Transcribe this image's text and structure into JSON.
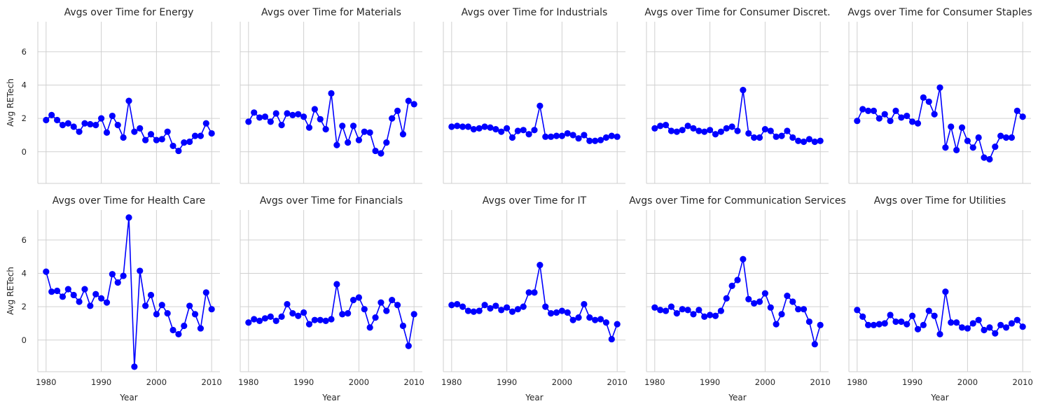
{
  "chart_data": {
    "type": "line",
    "layout": "facet-grid",
    "ylabel": "Avg RETech",
    "xlabel": "Year",
    "xlim": [
      1978.5,
      2011.5
    ],
    "ylim": [
      -1.9,
      7.8
    ],
    "xticks": [
      1980,
      1990,
      2000,
      2010
    ],
    "yticks": [
      0,
      2,
      4,
      6
    ],
    "grid": true,
    "color": "#0000ff",
    "x": [
      1980,
      1981,
      1982,
      1983,
      1984,
      1985,
      1986,
      1987,
      1988,
      1989,
      1990,
      1991,
      1992,
      1993,
      1994,
      1995,
      1996,
      1997,
      1998,
      1999,
      2000,
      2001,
      2002,
      2003,
      2004,
      2005,
      2006,
      2007,
      2008,
      2009,
      2010
    ],
    "panels": [
      {
        "title": "Avgs over Time for Energy",
        "values": [
          1.9,
          2.2,
          1.9,
          1.6,
          1.7,
          1.5,
          1.2,
          1.7,
          1.65,
          1.6,
          2.0,
          1.15,
          2.15,
          1.6,
          0.85,
          3.05,
          1.2,
          1.4,
          0.7,
          1.05,
          0.7,
          0.75,
          1.2,
          0.35,
          0.05,
          0.55,
          0.6,
          0.95,
          0.95,
          1.7,
          1.1
        ]
      },
      {
        "title": "Avgs over Time for Materials",
        "values": [
          1.8,
          2.35,
          2.05,
          2.1,
          1.8,
          2.3,
          1.6,
          2.3,
          2.2,
          2.25,
          2.1,
          1.45,
          2.55,
          1.95,
          1.35,
          3.5,
          0.4,
          1.55,
          0.55,
          1.55,
          0.7,
          1.2,
          1.15,
          0.05,
          -0.1,
          0.55,
          2.0,
          2.45,
          1.05,
          3.05,
          2.85
        ]
      },
      {
        "title": "Avgs over Time for Industrials",
        "values": [
          1.5,
          1.55,
          1.5,
          1.5,
          1.35,
          1.4,
          1.5,
          1.45,
          1.35,
          1.2,
          1.4,
          0.85,
          1.25,
          1.3,
          1.05,
          1.3,
          2.75,
          0.9,
          0.9,
          0.95,
          0.95,
          1.1,
          1.0,
          0.8,
          1.0,
          0.65,
          0.65,
          0.7,
          0.85,
          0.95,
          0.9
        ]
      },
      {
        "title": "Avgs over Time for Consumer Discret.",
        "values": [
          1.4,
          1.55,
          1.6,
          1.25,
          1.2,
          1.3,
          1.55,
          1.4,
          1.25,
          1.2,
          1.3,
          1.05,
          1.2,
          1.4,
          1.5,
          1.25,
          3.7,
          1.1,
          0.85,
          0.85,
          1.35,
          1.25,
          0.9,
          0.95,
          1.25,
          0.85,
          0.65,
          0.6,
          0.75,
          0.6,
          0.65
        ]
      },
      {
        "title": "Avgs over Time for Consumer Staples",
        "values": [
          1.85,
          2.55,
          2.45,
          2.45,
          2.0,
          2.25,
          1.85,
          2.45,
          2.05,
          2.15,
          1.8,
          1.7,
          3.25,
          3.0,
          2.25,
          3.85,
          0.25,
          1.5,
          0.1,
          1.45,
          0.65,
          0.25,
          0.85,
          -0.35,
          -0.45,
          0.3,
          0.95,
          0.85,
          0.85,
          2.45,
          2.1
        ]
      },
      {
        "title": "Avgs over Time for Health Care",
        "values": [
          4.1,
          2.9,
          2.95,
          2.6,
          3.05,
          2.7,
          2.3,
          3.05,
          2.05,
          2.75,
          2.5,
          2.25,
          3.95,
          3.45,
          3.85,
          7.35,
          -1.6,
          4.15,
          2.05,
          2.7,
          1.55,
          2.1,
          1.6,
          0.6,
          0.35,
          0.85,
          2.05,
          1.55,
          0.7,
          2.85,
          1.85
        ]
      },
      {
        "title": "Avgs over Time for Financials",
        "values": [
          1.05,
          1.25,
          1.15,
          1.3,
          1.4,
          1.15,
          1.4,
          2.15,
          1.6,
          1.45,
          1.65,
          0.95,
          1.2,
          1.2,
          1.15,
          1.25,
          3.35,
          1.55,
          1.6,
          2.4,
          2.55,
          1.85,
          0.75,
          1.35,
          2.25,
          1.75,
          2.4,
          2.1,
          0.85,
          -0.35,
          1.55
        ]
      },
      {
        "title": "Avgs over Time for IT",
        "values": [
          2.1,
          2.15,
          2.0,
          1.75,
          1.7,
          1.75,
          2.1,
          1.9,
          2.05,
          1.8,
          1.95,
          1.7,
          1.85,
          2.0,
          2.85,
          2.85,
          4.5,
          2.0,
          1.6,
          1.65,
          1.75,
          1.65,
          1.2,
          1.35,
          2.15,
          1.35,
          1.2,
          1.25,
          1.05,
          0.05,
          0.95
        ]
      },
      {
        "title": "Avgs over Time for Communication Services",
        "values": [
          1.95,
          1.8,
          1.75,
          2.0,
          1.6,
          1.85,
          1.8,
          1.55,
          1.8,
          1.4,
          1.5,
          1.45,
          1.75,
          2.5,
          3.25,
          3.6,
          4.85,
          2.45,
          2.2,
          2.3,
          2.8,
          1.95,
          0.95,
          1.55,
          2.65,
          2.3,
          1.85,
          1.85,
          1.1,
          -0.25,
          0.9
        ]
      },
      {
        "title": "Avgs over Time for Utilities",
        "values": [
          1.8,
          1.4,
          0.9,
          0.9,
          0.95,
          1.0,
          1.5,
          1.1,
          1.1,
          0.95,
          1.45,
          0.65,
          0.9,
          1.75,
          1.45,
          0.35,
          2.9,
          1.05,
          1.05,
          0.75,
          0.7,
          1.0,
          1.2,
          0.6,
          0.75,
          0.4,
          0.9,
          0.75,
          1.0,
          1.2,
          0.8
        ]
      }
    ]
  }
}
